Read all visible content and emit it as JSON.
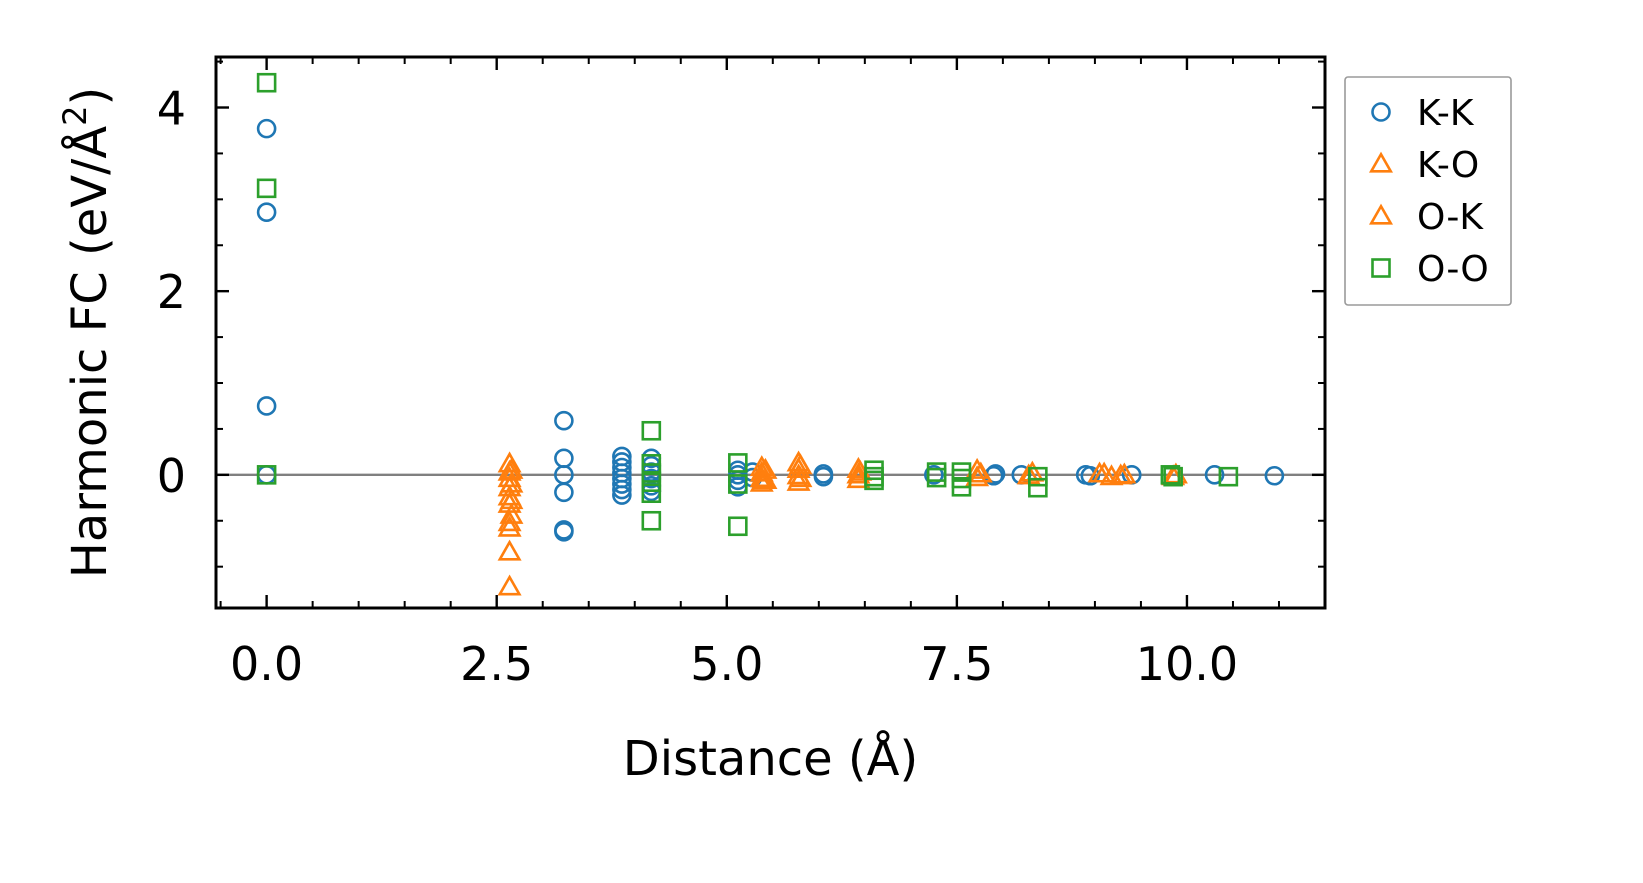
{
  "chart_data": {
    "type": "scatter",
    "title": "",
    "xlabel": "Distance (Å)",
    "ylabel": "Harmonic FC (eV/Å²)",
    "ylabel_main": "Harmonic FC (eV/Å",
    "ylabel_sup": "2",
    "ylabel_close": ")",
    "xlim": [
      -0.55,
      11.5
    ],
    "ylim": [
      -1.45,
      4.55
    ],
    "xticks": [
      0.0,
      2.5,
      5.0,
      7.5,
      10.0
    ],
    "xtick_labels": [
      "0.0",
      "2.5",
      "5.0",
      "7.5",
      "10.0"
    ],
    "yticks": [
      0,
      2,
      4
    ],
    "ytick_labels": [
      "0",
      "2",
      "4"
    ],
    "zero_line": 0,
    "legend_position": "outside-right",
    "series": [
      {
        "name": "K-K",
        "marker": "circle",
        "color": "#1f77b4",
        "points": [
          [
            0.0,
            3.77
          ],
          [
            0.0,
            2.86
          ],
          [
            0.0,
            0.75
          ],
          [
            0.0,
            0.0
          ],
          [
            3.23,
            0.59
          ],
          [
            3.23,
            0.18
          ],
          [
            3.23,
            0.0
          ],
          [
            3.23,
            -0.19
          ],
          [
            3.23,
            -0.6
          ],
          [
            3.23,
            -0.62
          ],
          [
            3.86,
            0.2
          ],
          [
            3.86,
            0.14
          ],
          [
            3.86,
            0.08
          ],
          [
            3.86,
            0.02
          ],
          [
            3.86,
            -0.04
          ],
          [
            3.86,
            -0.1
          ],
          [
            3.86,
            -0.16
          ],
          [
            3.86,
            -0.22
          ],
          [
            4.18,
            0.18
          ],
          [
            4.18,
            0.1
          ],
          [
            4.18,
            0.03
          ],
          [
            4.18,
            -0.04
          ],
          [
            4.18,
            -0.12
          ],
          [
            4.18,
            -0.18
          ],
          [
            5.12,
            0.05
          ],
          [
            5.12,
            0.0
          ],
          [
            5.12,
            -0.06
          ],
          [
            5.12,
            -0.13
          ],
          [
            5.28,
            0.03
          ],
          [
            5.28,
            -0.03
          ],
          [
            6.05,
            0.01
          ],
          [
            6.05,
            -0.02
          ],
          [
            7.25,
            0.0
          ],
          [
            7.9,
            -0.01
          ],
          [
            7.92,
            0.01
          ],
          [
            8.2,
            0.0
          ],
          [
            8.9,
            0.0
          ],
          [
            8.95,
            -0.01
          ],
          [
            9.4,
            0.0
          ],
          [
            10.3,
            0.0
          ],
          [
            10.95,
            -0.01
          ]
        ]
      },
      {
        "name": "K-O",
        "marker": "triangle",
        "color": "#ff7f0e",
        "points": [
          [
            2.64,
            0.12
          ],
          [
            2.64,
            0.03
          ],
          [
            2.64,
            -0.04
          ],
          [
            2.64,
            -0.14
          ],
          [
            2.64,
            -0.24
          ],
          [
            2.64,
            -0.32
          ],
          [
            2.64,
            -0.52
          ],
          [
            2.64,
            -0.58
          ],
          [
            2.64,
            -0.84
          ],
          [
            2.64,
            -1.22
          ],
          [
            5.38,
            0.08
          ],
          [
            5.38,
            0.02
          ],
          [
            5.38,
            -0.04
          ],
          [
            5.38,
            -0.09
          ],
          [
            5.78,
            0.13
          ],
          [
            5.78,
            0.06
          ],
          [
            5.78,
            -0.01
          ],
          [
            5.78,
            -0.08
          ],
          [
            6.43,
            0.06
          ],
          [
            6.43,
            0.0
          ],
          [
            6.43,
            -0.05
          ],
          [
            7.72,
            0.05
          ],
          [
            7.72,
            -0.03
          ],
          [
            8.28,
            -0.01
          ],
          [
            9.05,
            0.01
          ],
          [
            9.18,
            -0.02
          ],
          [
            9.32,
            0.0
          ],
          [
            9.85,
            -0.02
          ]
        ]
      },
      {
        "name": "O-K",
        "marker": "triangle",
        "color": "#ff7f0e",
        "points": [
          [
            2.66,
            0.05
          ],
          [
            2.66,
            -0.1
          ],
          [
            2.66,
            -0.28
          ],
          [
            2.66,
            -0.44
          ],
          [
            5.42,
            0.05
          ],
          [
            5.42,
            -0.06
          ],
          [
            5.8,
            0.1
          ],
          [
            5.8,
            -0.04
          ],
          [
            6.45,
            0.03
          ],
          [
            7.76,
            0.01
          ],
          [
            8.32,
            0.02
          ],
          [
            9.1,
            0.01
          ],
          [
            9.28,
            -0.01
          ],
          [
            9.88,
            0.0
          ]
        ]
      },
      {
        "name": "O-O",
        "marker": "square",
        "color": "#2ca02c",
        "points": [
          [
            0.0,
            4.27
          ],
          [
            0.0,
            3.12
          ],
          [
            0.0,
            0.0
          ],
          [
            4.18,
            0.48
          ],
          [
            4.18,
            0.12
          ],
          [
            4.18,
            0.02
          ],
          [
            4.18,
            -0.08
          ],
          [
            4.18,
            -0.2
          ],
          [
            4.18,
            -0.5
          ],
          [
            5.12,
            0.13
          ],
          [
            5.12,
            -0.1
          ],
          [
            5.12,
            -0.56
          ],
          [
            6.6,
            0.05
          ],
          [
            6.6,
            -0.02
          ],
          [
            6.6,
            -0.06
          ],
          [
            7.28,
            0.03
          ],
          [
            7.28,
            -0.03
          ],
          [
            7.55,
            0.03
          ],
          [
            7.55,
            -0.04
          ],
          [
            7.55,
            -0.13
          ],
          [
            8.38,
            -0.02
          ],
          [
            8.38,
            -0.14
          ],
          [
            9.82,
            0.0
          ],
          [
            9.85,
            -0.02
          ],
          [
            10.45,
            -0.02
          ]
        ]
      }
    ]
  }
}
